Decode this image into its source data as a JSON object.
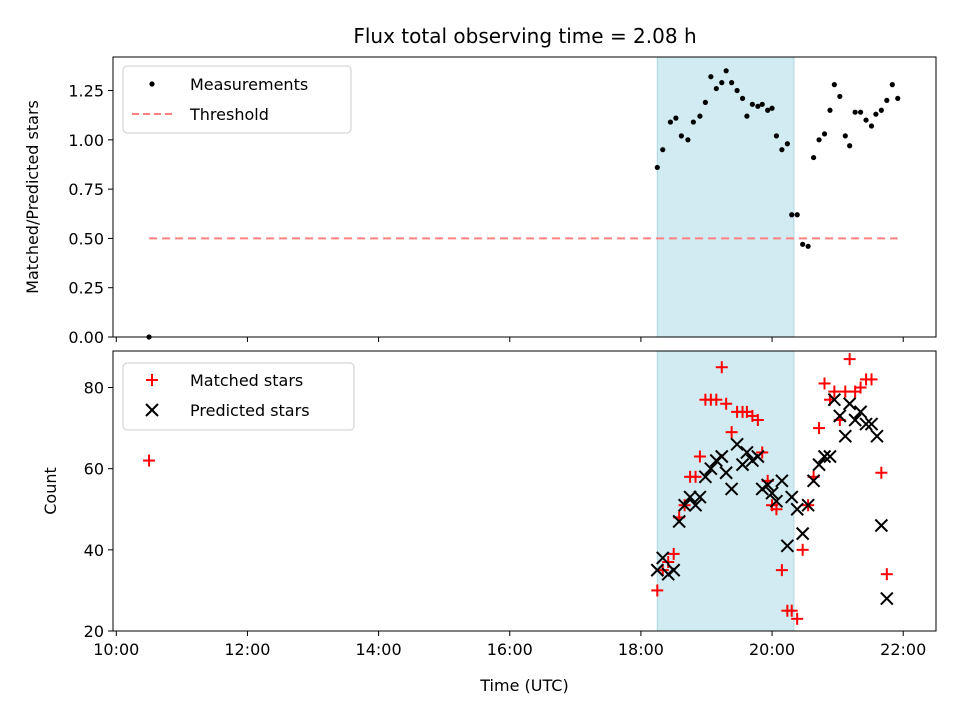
{
  "chart_data": [
    {
      "type": "scatter",
      "title": "Flux total observing time = 2.08 h",
      "xlabel": "",
      "ylabel": "Matched/Predicted stars",
      "ylim": [
        0,
        1.42
      ],
      "yticks": [
        "0.00",
        "0.25",
        "0.50",
        "0.75",
        "1.00",
        "1.25"
      ],
      "ytick_values": [
        0,
        0.25,
        0.5,
        0.75,
        1.0,
        1.25
      ],
      "highlight_span": [
        "18:15",
        "20:20"
      ],
      "legend": "top-left",
      "series": [
        {
          "name": "Measurements",
          "marker": "dot",
          "color": "#000000",
          "points": [
            [
              "10:30",
              0.0
            ],
            [
              "18:15",
              0.86
            ],
            [
              "18:20",
              0.95
            ],
            [
              "18:27",
              1.09
            ],
            [
              "18:32",
              1.11
            ],
            [
              "18:37",
              1.02
            ],
            [
              "18:43",
              1.0
            ],
            [
              "18:48",
              1.09
            ],
            [
              "18:54",
              1.12
            ],
            [
              "18:59",
              1.19
            ],
            [
              "19:04",
              1.32
            ],
            [
              "19:09",
              1.26
            ],
            [
              "19:14",
              1.29
            ],
            [
              "19:18",
              1.35
            ],
            [
              "19:23",
              1.29
            ],
            [
              "19:28",
              1.25
            ],
            [
              "19:33",
              1.21
            ],
            [
              "19:37",
              1.12
            ],
            [
              "19:42",
              1.18
            ],
            [
              "19:47",
              1.17
            ],
            [
              "19:51",
              1.18
            ],
            [
              "19:56",
              1.15
            ],
            [
              "20:00",
              1.16
            ],
            [
              "20:04",
              1.02
            ],
            [
              "20:09",
              0.95
            ],
            [
              "20:14",
              0.98
            ],
            [
              "20:18",
              0.62
            ],
            [
              "20:23",
              0.62
            ],
            [
              "20:28",
              0.47
            ],
            [
              "20:33",
              0.46
            ],
            [
              "20:38",
              0.91
            ],
            [
              "20:43",
              1.0
            ],
            [
              "20:48",
              1.03
            ],
            [
              "20:53",
              1.15
            ],
            [
              "20:57",
              1.28
            ],
            [
              "21:02",
              1.22
            ],
            [
              "21:07",
              1.02
            ],
            [
              "21:11",
              0.97
            ],
            [
              "21:16",
              1.14
            ],
            [
              "21:21",
              1.14
            ],
            [
              "21:26",
              1.1
            ],
            [
              "21:31",
              1.07
            ],
            [
              "21:35",
              1.13
            ],
            [
              "21:40",
              1.15
            ],
            [
              "21:45",
              1.2
            ],
            [
              "21:50",
              1.28
            ],
            [
              "21:55",
              1.21
            ]
          ]
        },
        {
          "name": "Threshold",
          "marker": "dashed-line",
          "color": "#ff8080",
          "points": [
            [
              "10:30",
              0.5
            ],
            [
              "21:55",
              0.5
            ]
          ]
        }
      ]
    },
    {
      "type": "scatter",
      "title": "",
      "xlabel": "Time (UTC)",
      "ylabel": "Count",
      "ylim": [
        20,
        89
      ],
      "yticks": [
        "20",
        "40",
        "60",
        "80"
      ],
      "ytick_values": [
        20,
        40,
        60,
        80
      ],
      "xticks": [
        "10:00",
        "12:00",
        "14:00",
        "16:00",
        "18:00",
        "20:00",
        "22:00"
      ],
      "highlight_span": [
        "18:15",
        "20:20"
      ],
      "legend": "top-left",
      "series": [
        {
          "name": "Matched stars",
          "marker": "plus",
          "color": "#ff0000",
          "points": [
            [
              "10:30",
              62
            ],
            [
              "18:15",
              30
            ],
            [
              "18:20",
              35
            ],
            [
              "18:25",
              37
            ],
            [
              "18:30",
              39
            ],
            [
              "18:35",
              48
            ],
            [
              "18:40",
              51
            ],
            [
              "18:45",
              58
            ],
            [
              "18:50",
              58
            ],
            [
              "18:54",
              63
            ],
            [
              "18:59",
              77
            ],
            [
              "19:04",
              77
            ],
            [
              "19:09",
              77
            ],
            [
              "19:14",
              85
            ],
            [
              "19:18",
              76
            ],
            [
              "19:23",
              69
            ],
            [
              "19:28",
              74
            ],
            [
              "19:33",
              74
            ],
            [
              "19:37",
              74
            ],
            [
              "19:42",
              73
            ],
            [
              "19:47",
              72
            ],
            [
              "19:51",
              64
            ],
            [
              "19:56",
              57
            ],
            [
              "20:00",
              51
            ],
            [
              "20:04",
              50
            ],
            [
              "20:09",
              35
            ],
            [
              "20:14",
              25
            ],
            [
              "20:18",
              25
            ],
            [
              "20:23",
              23
            ],
            [
              "20:28",
              40
            ],
            [
              "20:33",
              51
            ],
            [
              "20:38",
              58
            ],
            [
              "20:43",
              70
            ],
            [
              "20:48",
              81
            ],
            [
              "20:53",
              77
            ],
            [
              "20:57",
              79
            ],
            [
              "21:02",
              72
            ],
            [
              "21:07",
              79
            ],
            [
              "21:11",
              87
            ],
            [
              "21:16",
              79
            ],
            [
              "21:21",
              80
            ],
            [
              "21:26",
              82
            ],
            [
              "21:31",
              82
            ],
            [
              "21:40",
              59
            ],
            [
              "21:45",
              34
            ]
          ]
        },
        {
          "name": "Predicted stars",
          "marker": "x",
          "color": "#000000",
          "points": [
            [
              "18:15",
              35
            ],
            [
              "18:20",
              38
            ],
            [
              "18:25",
              34
            ],
            [
              "18:30",
              35
            ],
            [
              "18:35",
              47
            ],
            [
              "18:40",
              51
            ],
            [
              "18:45",
              53
            ],
            [
              "18:50",
              51
            ],
            [
              "18:54",
              53
            ],
            [
              "18:59",
              58
            ],
            [
              "19:04",
              60
            ],
            [
              "19:09",
              62
            ],
            [
              "19:14",
              63
            ],
            [
              "19:18",
              59
            ],
            [
              "19:23",
              55
            ],
            [
              "19:28",
              66
            ],
            [
              "19:33",
              61
            ],
            [
              "19:37",
              64
            ],
            [
              "19:42",
              62
            ],
            [
              "19:47",
              63
            ],
            [
              "19:51",
              55
            ],
            [
              "19:56",
              56
            ],
            [
              "20:00",
              54
            ],
            [
              "20:04",
              52
            ],
            [
              "20:09",
              57
            ],
            [
              "20:14",
              41
            ],
            [
              "20:18",
              53
            ],
            [
              "20:23",
              50
            ],
            [
              "20:28",
              44
            ],
            [
              "20:33",
              51
            ],
            [
              "20:38",
              57
            ],
            [
              "20:43",
              61
            ],
            [
              "20:48",
              63
            ],
            [
              "20:53",
              63
            ],
            [
              "20:57",
              77
            ],
            [
              "21:02",
              73
            ],
            [
              "21:07",
              68
            ],
            [
              "21:11",
              76
            ],
            [
              "21:16",
              72
            ],
            [
              "21:21",
              74
            ],
            [
              "21:26",
              71
            ],
            [
              "21:31",
              71
            ],
            [
              "21:36",
              68
            ],
            [
              "21:40",
              46
            ],
            [
              "21:45",
              28
            ]
          ]
        }
      ]
    }
  ],
  "colors": {
    "span": "#add8e6",
    "matched": "#ff0000",
    "predicted": "#000000",
    "threshold": "#ff8080",
    "measurement": "#000000"
  }
}
